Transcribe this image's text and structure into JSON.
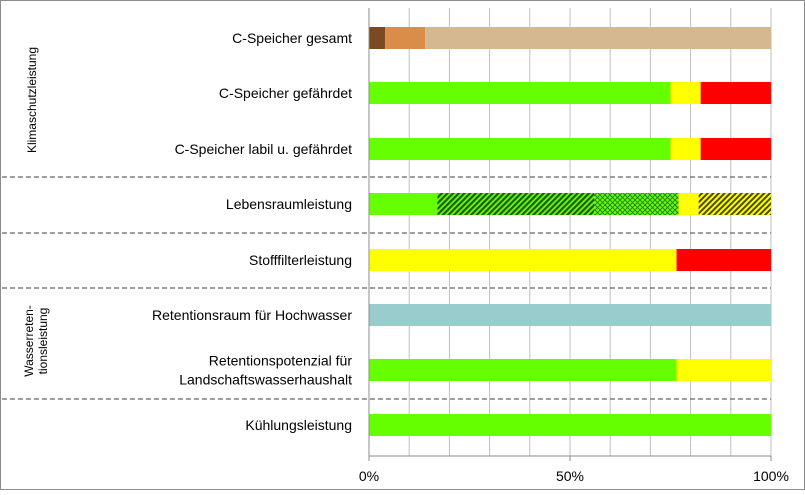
{
  "chart_data": {
    "type": "bar",
    "orientation": "horizontal",
    "stacked": true,
    "xlim": [
      0,
      100
    ],
    "x_ticks": [
      "0%",
      "50%",
      "100%"
    ],
    "grid": true,
    "group_labels": [
      "Klimaschutzleistung",
      "Wasserreten-",
      "tionsleistung"
    ],
    "categories": [
      {
        "label": [
          "C-Speicher gesamt"
        ],
        "segments": [
          {
            "value": 4,
            "color": "#7a4a23"
          },
          {
            "value": 10,
            "color": "#d98d48"
          },
          {
            "value": 86,
            "color": "#d6b890"
          }
        ]
      },
      {
        "label": [
          "C-Speicher gefährdet"
        ],
        "segments": [
          {
            "value": 75,
            "color": "#66ff00"
          },
          {
            "value": 7.5,
            "color": "#ffff00"
          },
          {
            "value": 17.5,
            "color": "#ff0000"
          }
        ]
      },
      {
        "label": [
          "C-Speicher labil u. gefährdet"
        ],
        "segments": [
          {
            "value": 75,
            "color": "#66ff00"
          },
          {
            "value": 7.5,
            "color": "#ffff00"
          },
          {
            "value": 17.5,
            "color": "#ff0000"
          }
        ]
      },
      {
        "label": [
          "Lebensraumleistung"
        ],
        "segments": [
          {
            "value": 17,
            "color": "#66ff00"
          },
          {
            "value": 39,
            "color": "#66ff00",
            "pattern": "diag-dark"
          },
          {
            "value": 21,
            "color": "#66ff00",
            "pattern": "cross"
          },
          {
            "value": 5,
            "color": "#ffff00"
          },
          {
            "value": 18,
            "color": "#ffff00",
            "pattern": "diag-dark"
          }
        ]
      },
      {
        "label": [
          "Stofffilterleistung"
        ],
        "segments": [
          {
            "value": 76.5,
            "color": "#ffff00"
          },
          {
            "value": 23.5,
            "color": "#ff0000"
          }
        ]
      },
      {
        "label": [
          "Retentionsraum für Hochwasser"
        ],
        "segments": [
          {
            "value": 100,
            "color": "#99cccc"
          }
        ]
      },
      {
        "label": [
          "Retentionspotenzial für",
          "Landschaftswasserhaushalt"
        ],
        "segments": [
          {
            "value": 76.5,
            "color": "#66ff00"
          },
          {
            "value": 23.5,
            "color": "#ffff00"
          }
        ]
      },
      {
        "label": [
          "Kühlungsleistung"
        ],
        "segments": [
          {
            "value": 100,
            "color": "#66ff00"
          }
        ]
      }
    ]
  }
}
